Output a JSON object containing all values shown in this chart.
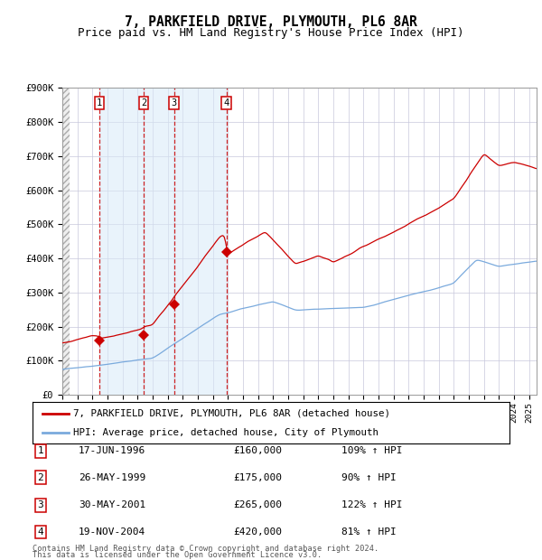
{
  "title": "7, PARKFIELD DRIVE, PLYMOUTH, PL6 8AR",
  "subtitle": "Price paid vs. HM Land Registry's House Price Index (HPI)",
  "ylim": [
    0,
    900000
  ],
  "xlim_start": 1994.0,
  "xlim_end": 2025.5,
  "yticks": [
    0,
    100000,
    200000,
    300000,
    400000,
    500000,
    600000,
    700000,
    800000,
    900000
  ],
  "ytick_labels": [
    "£0",
    "£100K",
    "£200K",
    "£300K",
    "£400K",
    "£500K",
    "£600K",
    "£700K",
    "£800K",
    "£900K"
  ],
  "purchases": [
    {
      "label": 1,
      "year": 1996.46,
      "price": 160000,
      "date_str": "17-JUN-1996",
      "pct": "109%"
    },
    {
      "label": 2,
      "year": 1999.4,
      "price": 175000,
      "date_str": "26-MAY-1999",
      "pct": "90%"
    },
    {
      "label": 3,
      "year": 2001.41,
      "price": 265000,
      "date_str": "30-MAY-2001",
      "pct": "122%"
    },
    {
      "label": 4,
      "year": 2004.89,
      "price": 420000,
      "date_str": "19-NOV-2004",
      "pct": "81%"
    }
  ],
  "hpi_color": "#7aaadd",
  "price_color": "#cc0000",
  "bg_color": "#ffffff",
  "grid_color": "#c8c8dc",
  "shade_color": "#d8eaf8",
  "hatch_bg": "#e8e8e8",
  "legend_line1": "7, PARKFIELD DRIVE, PLYMOUTH, PL6 8AR (detached house)",
  "legend_line2": "HPI: Average price, detached house, City of Plymouth",
  "footer1": "Contains HM Land Registry data © Crown copyright and database right 2024.",
  "footer2": "This data is licensed under the Open Government Licence v3.0.",
  "title_fontsize": 10.5,
  "subtitle_fontsize": 9.0,
  "table_fontsize": 8.0,
  "legend_fontsize": 7.8
}
